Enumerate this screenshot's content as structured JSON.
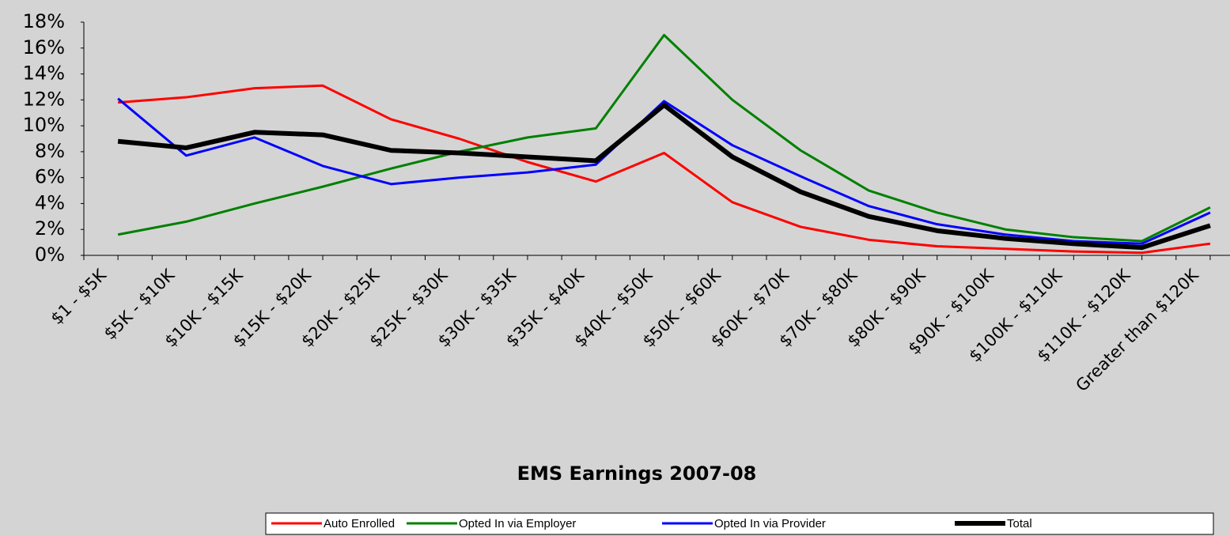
{
  "chart_data": {
    "type": "line",
    "title": "EMS Earnings 2007-08",
    "categories": [
      "$1 - $5K",
      "$5K - $10K",
      "$10K - $15K",
      "$15K - $20K",
      "$20K - $25K",
      "$25K - $30K",
      "$30K - $35K",
      "$35K - $40K",
      "$40K - $50K",
      "$50K - $60K",
      "$60K - $70K",
      "$70K - $80K",
      "$80K - $90K",
      "$90K - $100K",
      "$100K - $110K",
      "$110K - $120K",
      "Greater than $120K"
    ],
    "series": [
      {
        "name": "Auto Enrolled",
        "color": "#ff0000",
        "values": [
          11.8,
          12.2,
          12.9,
          13.1,
          10.5,
          9.0,
          7.2,
          5.7,
          7.9,
          4.1,
          2.2,
          1.2,
          0.7,
          0.5,
          0.3,
          0.2,
          0.9
        ]
      },
      {
        "name": "Opted In via Employer",
        "color": "#008000",
        "values": [
          1.6,
          2.6,
          4.0,
          5.3,
          6.7,
          8.0,
          9.1,
          9.8,
          17.0,
          12.0,
          8.1,
          5.0,
          3.3,
          2.0,
          1.4,
          1.1,
          3.7
        ]
      },
      {
        "name": "Opted In via Provider",
        "color": "#0000ff",
        "values": [
          12.1,
          7.7,
          9.1,
          6.9,
          5.5,
          6.0,
          6.4,
          7.0,
          11.9,
          8.5,
          6.1,
          3.8,
          2.4,
          1.6,
          1.1,
          0.9,
          3.3
        ]
      },
      {
        "name": "Total",
        "color": "#000000",
        "values": [
          8.8,
          8.3,
          9.5,
          9.3,
          8.1,
          7.9,
          7.6,
          7.3,
          11.6,
          7.6,
          4.9,
          3.0,
          1.9,
          1.3,
          0.9,
          0.6,
          2.3
        ]
      }
    ],
    "ylim": [
      0,
      18
    ],
    "yticks": [
      {
        "value": 0,
        "label": "0%"
      },
      {
        "value": 2,
        "label": "2%"
      },
      {
        "value": 4,
        "label": "4%"
      },
      {
        "value": 6,
        "label": "6%"
      },
      {
        "value": 8,
        "label": "8%"
      },
      {
        "value": 10,
        "label": "10%"
      },
      {
        "value": 12,
        "label": "12%"
      },
      {
        "value": 14,
        "label": "14%"
      },
      {
        "value": 16,
        "label": "16%"
      },
      {
        "value": 18,
        "label": "18%"
      }
    ],
    "legend": "bottom"
  }
}
